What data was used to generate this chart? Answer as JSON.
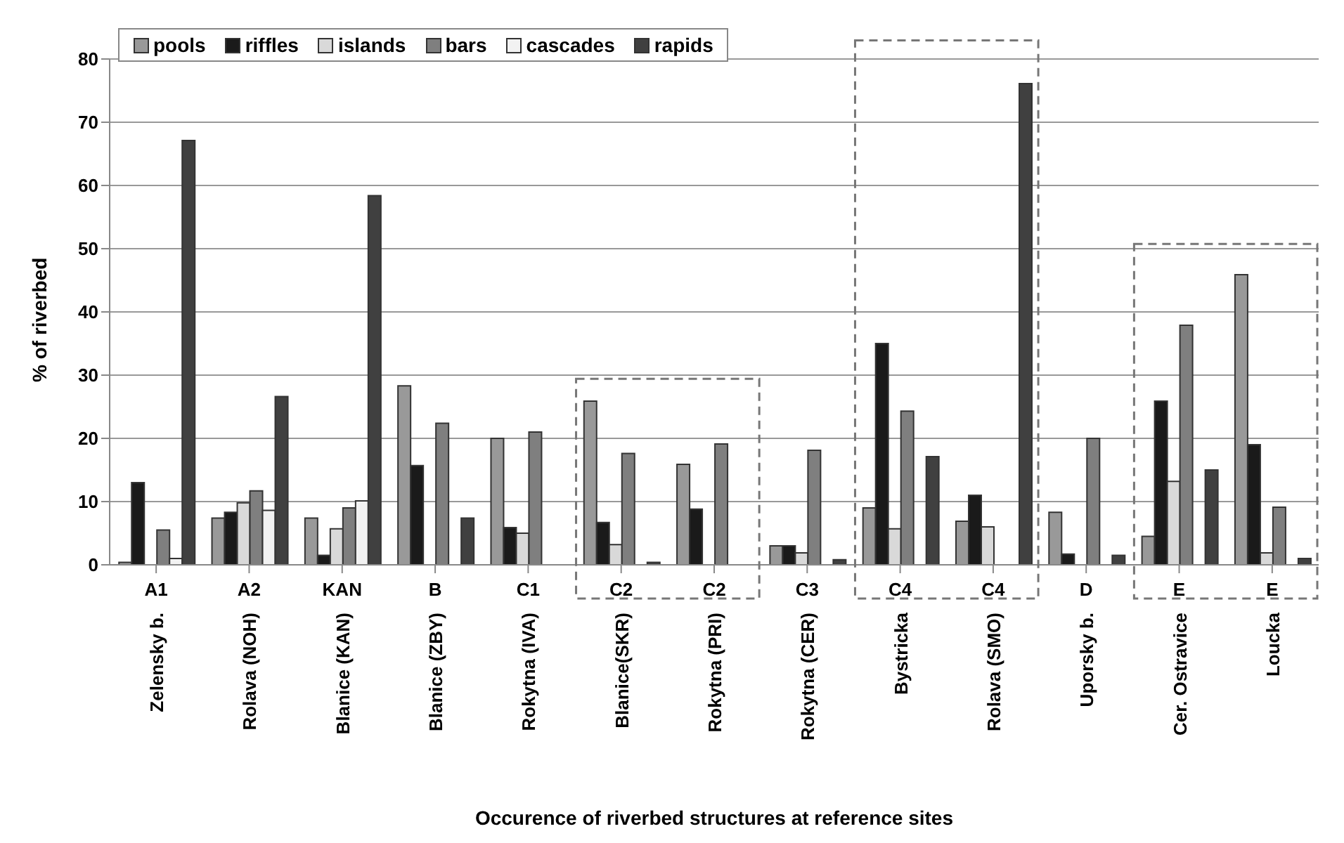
{
  "chart_data": {
    "type": "bar",
    "xlabel": "Occurence of riverbed structures at reference sites",
    "ylabel": "% of riverbed",
    "categories": [
      "Zelensky b.",
      "Rolava (NOH)",
      "Blanice (KAN)",
      "Blanice (ZBY)",
      "Rokytna (IVA)",
      "Blanice(SKR)",
      "Rokytna (PRI)",
      "Rokytna (CER)",
      "Bystricka",
      "Rolava (SMO)",
      "Uporsky b.",
      "Cer. Ostravice",
      "Loucka"
    ],
    "annotations": [
      "A1",
      "A2",
      "KAN",
      "B",
      "C1",
      "C2",
      "C2",
      "C3",
      "C4",
      "C4",
      "D",
      "E",
      "E"
    ],
    "series": [
      {
        "name": "pools",
        "color": "#999999",
        "values": [
          0.4,
          7.4,
          7.4,
          28.3,
          20.0,
          25.9,
          15.9,
          3.0,
          9.0,
          6.9,
          8.3,
          4.5,
          45.9
        ]
      },
      {
        "name": "riffles",
        "color": "#1a1a1a",
        "values": [
          13,
          8.3,
          1.5,
          15.7,
          5.9,
          6.7,
          8.8,
          3.0,
          35.0,
          11.0,
          1.7,
          25.9,
          19.0
        ]
      },
      {
        "name": "islands",
        "color": "#d9d9d9",
        "values": [
          0,
          9.8,
          5.7,
          0,
          5.0,
          3.2,
          0,
          1.9,
          5.7,
          6.0,
          0,
          13.2,
          1.9
        ]
      },
      {
        "name": "bars",
        "color": "#7f7f7f",
        "values": [
          5.5,
          11.7,
          9.0,
          22.4,
          21.0,
          17.6,
          19.1,
          18.1,
          24.3,
          0,
          20.0,
          37.9,
          9.1
        ]
      },
      {
        "name": "cascades",
        "color": "#f2f2f2",
        "values": [
          1.0,
          8.6,
          10.1,
          0,
          0,
          0,
          0,
          0,
          0,
          0,
          0,
          0,
          0
        ]
      },
      {
        "name": "rapids",
        "color": "#404040",
        "values": [
          67.1,
          26.6,
          58.4,
          7.4,
          0,
          0.4,
          0,
          0.8,
          17.1,
          76.1,
          1.5,
          15.0,
          1.0
        ]
      }
    ],
    "ylim": [
      0,
      80
    ],
    "yticks": [
      0,
      10,
      20,
      30,
      40,
      50,
      60,
      70,
      80
    ],
    "grid": "y",
    "legend": "top left"
  }
}
